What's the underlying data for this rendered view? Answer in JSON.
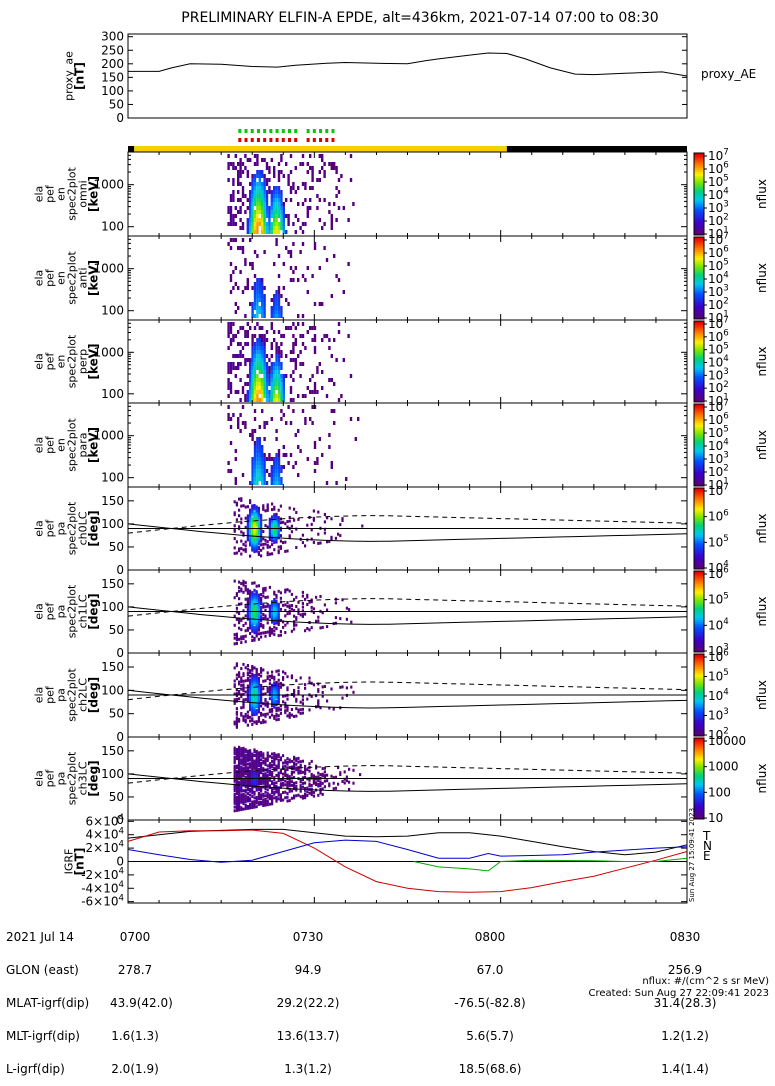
{
  "title": "PRELIMINARY ELFIN-A EPDE, alt=436km, 2021-07-14 07:00 to 08:30",
  "chart_data": [
    {
      "type": "line",
      "ylabel": [
        "proxy_ae",
        "[nT]"
      ],
      "yticks": [
        "0",
        "50",
        "100",
        "150",
        "200",
        "250",
        "300"
      ],
      "ylim": [
        0,
        310
      ],
      "series": [
        {
          "name": "proxy_AE",
          "x": [
            "07:00",
            "07:05",
            "07:07",
            "07:10",
            "07:15",
            "07:20",
            "07:24",
            "07:27",
            "07:32",
            "07:35",
            "07:40",
            "07:45",
            "07:48",
            "07:50",
            "07:55",
            "07:58",
            "08:01",
            "08:04",
            "08:08",
            "08:12",
            "08:15",
            "08:20",
            "08:26",
            "08:30"
          ],
          "values": [
            172,
            172,
            185,
            200,
            198,
            190,
            188,
            195,
            202,
            205,
            202,
            200,
            212,
            218,
            232,
            240,
            238,
            218,
            185,
            162,
            160,
            165,
            170,
            155
          ]
        }
      ]
    },
    {
      "type": "heatmap",
      "ylabel": [
        "ela",
        "pef",
        "en",
        "spec2plot",
        "omni",
        "[keV]"
      ],
      "yticks": [
        "100",
        "1000"
      ],
      "yscale": "log",
      "ylim": [
        60,
        6000
      ],
      "colorbar": {
        "label": "nflux",
        "ticks": [
          "10^1",
          "10^2",
          "10^3",
          "10^4",
          "10^5",
          "10^6",
          "10^7"
        ]
      },
      "data_window": [
        "07:16",
        "07:40"
      ],
      "peak_times": [
        "07:20",
        "07:22.5"
      ]
    },
    {
      "type": "heatmap",
      "ylabel": [
        "ela",
        "pef",
        "en",
        "spec2plot",
        "anti",
        "[keV]"
      ],
      "yticks": [
        "100",
        "1000"
      ],
      "yscale": "log",
      "ylim": [
        60,
        6000
      ],
      "colorbar": {
        "label": "nflux",
        "ticks": [
          "10^1",
          "10^2",
          "10^3",
          "10^4",
          "10^5",
          "10^6",
          "10^7"
        ]
      },
      "data_window": [
        "07:16",
        "07:40"
      ]
    },
    {
      "type": "heatmap",
      "ylabel": [
        "ela",
        "pef",
        "en",
        "spec2plot",
        "perp",
        "[keV]"
      ],
      "yticks": [
        "100",
        "1000"
      ],
      "yscale": "log",
      "ylim": [
        60,
        6000
      ],
      "colorbar": {
        "label": "nflux",
        "ticks": [
          "10^1",
          "10^2",
          "10^3",
          "10^4",
          "10^5",
          "10^6",
          "10^7"
        ]
      },
      "data_window": [
        "07:16",
        "07:40"
      ]
    },
    {
      "type": "heatmap",
      "ylabel": [
        "ela",
        "pef",
        "en",
        "spec2plot",
        "para",
        "[keV]"
      ],
      "yticks": [
        "100",
        "1000"
      ],
      "yscale": "log",
      "ylim": [
        60,
        6000
      ],
      "colorbar": {
        "label": "nflux",
        "ticks": [
          "10^1",
          "10^2",
          "10^3",
          "10^4",
          "10^5",
          "10^6",
          "10^7"
        ]
      },
      "data_window": [
        "07:16",
        "07:40"
      ]
    },
    {
      "type": "heatmap",
      "ylabel": [
        "ela",
        "pef",
        "pa",
        "spec2plot",
        "ch0LC",
        "[deg]"
      ],
      "yticks": [
        "0",
        "50",
        "100",
        "150"
      ],
      "ylim": [
        0,
        180
      ],
      "colorbar": {
        "label": "nflux",
        "ticks": [
          "10^4",
          "10^5",
          "10^6",
          "10^7"
        ]
      }
    },
    {
      "type": "heatmap",
      "ylabel": [
        "ela",
        "pef",
        "pa",
        "spec2plot",
        "ch1LC",
        "[deg]"
      ],
      "yticks": [
        "0",
        "50",
        "100",
        "150"
      ],
      "ylim": [
        0,
        180
      ],
      "colorbar": {
        "label": "nflux",
        "ticks": [
          "10^3",
          "10^4",
          "10^5",
          "10^6"
        ]
      }
    },
    {
      "type": "heatmap",
      "ylabel": [
        "ela",
        "pef",
        "pa",
        "spec2plot",
        "ch2LC",
        "[deg]"
      ],
      "yticks": [
        "0",
        "50",
        "100",
        "150"
      ],
      "ylim": [
        0,
        180
      ],
      "colorbar": {
        "label": "nflux",
        "ticks": [
          "10^2",
          "10^3",
          "10^4",
          "10^5",
          "10^6"
        ]
      }
    },
    {
      "type": "heatmap",
      "ylabel": [
        "ela",
        "pef",
        "pa",
        "spec2plot",
        "ch3LC",
        "[deg]"
      ],
      "yticks": [
        "0",
        "50",
        "100",
        "150"
      ],
      "ylim": [
        0,
        180
      ],
      "colorbar": {
        "label": "nflux",
        "ticks": [
          "10",
          "100",
          "1000",
          "10000"
        ]
      }
    },
    {
      "type": "line",
      "ylabel": [
        "IGRF",
        "[nT]"
      ],
      "yticks": [
        "-6×10^4",
        "-4×10^4",
        "-2×10^4",
        "0",
        "2×10^4",
        "4×10^4",
        "6×10^4"
      ],
      "ylim": [
        -62000,
        62000
      ],
      "legend": [
        "T",
        "N",
        "E"
      ],
      "series": [
        {
          "name": "T",
          "color": "#000000",
          "x": [
            "07:00",
            "07:10",
            "07:20",
            "07:25",
            "07:30",
            "07:35",
            "07:40",
            "07:45",
            "07:50",
            "07:55",
            "08:00",
            "08:05",
            "08:10",
            "08:15",
            "08:20",
            "08:25",
            "08:30"
          ],
          "values": [
            35000,
            45000,
            48000,
            48000,
            43000,
            38000,
            37000,
            38000,
            43000,
            43000,
            38000,
            30000,
            22000,
            15000,
            10000,
            14000,
            25000
          ]
        },
        {
          "name": "N",
          "color": "#cc0000",
          "x": [
            "07:00",
            "07:05",
            "07:10",
            "07:15",
            "07:20",
            "07:25",
            "07:30",
            "07:35",
            "07:40",
            "07:45",
            "07:50",
            "07:55",
            "08:00",
            "08:05",
            "08:10",
            "08:15",
            "08:20",
            "08:25",
            "08:30"
          ],
          "values": [
            30000,
            44000,
            46000,
            46000,
            47000,
            42000,
            20000,
            -8000,
            -30000,
            -40000,
            -45000,
            -46000,
            -45000,
            -39000,
            -30000,
            -22000,
            -10000,
            2000,
            15000
          ]
        },
        {
          "name": "E",
          "color": "#00aa00",
          "x": [
            "07:46",
            "07:50",
            "07:55",
            "07:58",
            "08:00",
            "08:05",
            "08:10",
            "08:15",
            "08:20",
            "08:25",
            "08:30"
          ],
          "values": [
            0,
            -8000,
            -11000,
            -14000,
            0,
            2000,
            1500,
            1000,
            0,
            0,
            5000
          ]
        },
        {
          "name": "blue",
          "color": "#0000cc",
          "x": [
            "07:00",
            "07:05",
            "07:10",
            "07:15",
            "07:20",
            "07:25",
            "07:30",
            "07:35",
            "07:40",
            "07:45",
            "07:50",
            "07:55",
            "07:58",
            "08:00",
            "08:05",
            "08:10",
            "08:15",
            "08:20",
            "08:25",
            "08:30"
          ],
          "values": [
            18000,
            10000,
            3000,
            -1000,
            2000,
            15000,
            28000,
            32000,
            30000,
            18000,
            5000,
            5000,
            12000,
            8000,
            9000,
            10000,
            14000,
            17000,
            20000,
            22000
          ]
        }
      ]
    }
  ],
  "x_axis": {
    "ticks": [
      "0700",
      "0730",
      "0800",
      "0830"
    ],
    "rows": [
      {
        "label": "2021 Jul 14",
        "values": [
          "0700",
          "0730",
          "0800",
          "0830"
        ]
      },
      {
        "label": "GLON (east)",
        "values": [
          "278.7",
          "94.9",
          "67.0",
          "256.9"
        ]
      },
      {
        "label": "MLAT-igrf(dip)",
        "values": [
          "43.9(42.0)",
          "29.2(22.2)",
          "-76.5(-82.8)",
          "31.4(28.3)"
        ]
      },
      {
        "label": "MLT-igrf(dip)",
        "values": [
          "1.6(1.3)",
          "13.6(13.7)",
          "5.6(5.7)",
          "1.2(1.2)"
        ]
      },
      {
        "label": "L-igrf(dip)",
        "values": [
          "2.0(1.9)",
          "1.3(1.2)",
          "18.5(68.6)",
          "1.4(1.4)"
        ]
      }
    ]
  },
  "side_stamp": "Sun Aug 27 15:09:41 2023",
  "footer": {
    "units": "nflux: #/(cm^2 s sr MeV)",
    "created": "Created: Sun Aug 27 22:09:41 2023"
  },
  "status_bar": {
    "segments": [
      {
        "from": "07:00",
        "to": "07:01",
        "color": "#000000"
      },
      {
        "from": "07:01",
        "to": "08:01",
        "color": "#f4d000"
      },
      {
        "from": "08:01",
        "to": "08:30",
        "color": "#000000"
      }
    ],
    "marker_times": [
      "07:18",
      "07:19",
      "07:20",
      "07:21",
      "07:22",
      "07:23",
      "07:24",
      "07:25",
      "07:26",
      "07:27",
      "07:29",
      "07:30",
      "07:31",
      "07:32",
      "07:33"
    ],
    "colors": {
      "upper": "#00cc00",
      "lower": "#dd0000"
    }
  }
}
